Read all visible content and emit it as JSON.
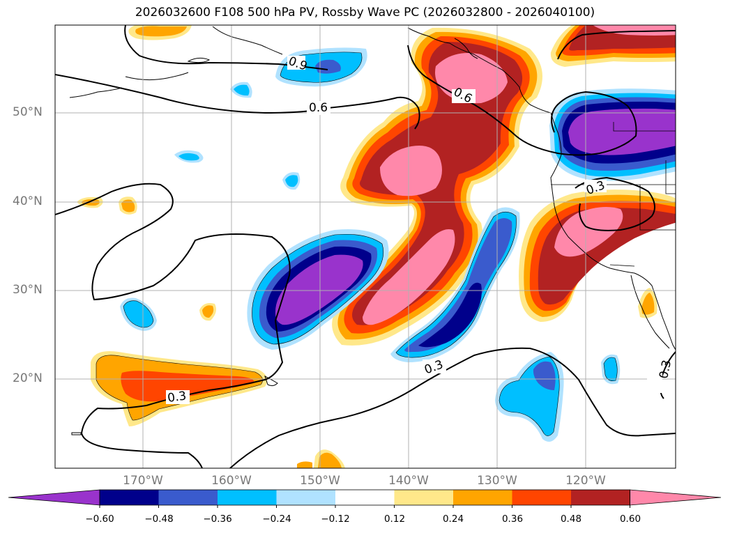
{
  "title": "2026032600 F108 500 hPa PV, Rossby Wave PC (2026032800 - 2026040100)",
  "map": {
    "lat_labels": [
      "50°N",
      "40°N",
      "30°N",
      "20°N"
    ],
    "lon_labels": [
      "170°W",
      "160°W",
      "150°W",
      "140°W",
      "130°W",
      "120°W"
    ],
    "contour_labels": [
      "0.9",
      "0.6",
      "0.6",
      "0.3",
      "0.3",
      "0.3",
      "0.3"
    ]
  },
  "colorbar": {
    "colors": [
      "#9933cc",
      "#00008b",
      "#3a5bcd",
      "#00bfff",
      "#b0e2ff",
      "#ffffff",
      "#ffe88a",
      "#ffa500",
      "#ff4500",
      "#b22222",
      "#ff88aa"
    ],
    "tick_labels": [
      "−0.60",
      "−0.48",
      "−0.36",
      "−0.24",
      "−0.12",
      "0.12",
      "0.24",
      "0.36",
      "0.48",
      "0.60"
    ],
    "extend": "both"
  }
}
